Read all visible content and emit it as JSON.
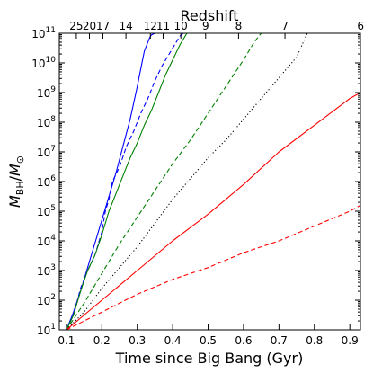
{
  "chart_data": {
    "type": "line",
    "title": "",
    "xlabel": "Time since Big Bang (Gyr)",
    "ylabel_main": "M",
    "ylabel_sub1": "BH",
    "ylabel_sep": "/",
    "ylabel_sub2": "⊙",
    "x2label": "Redshift",
    "xlim": [
      0.08,
      0.93
    ],
    "ylim": [
      1,
      11
    ],
    "yscale": "log",
    "x_ticks": [
      {
        "value": 0.1,
        "label": "0.1"
      },
      {
        "value": 0.2,
        "label": "0.2"
      },
      {
        "value": 0.3,
        "label": "0.3"
      },
      {
        "value": 0.4,
        "label": "0.4"
      },
      {
        "value": 0.5,
        "label": "0.5"
      },
      {
        "value": 0.6,
        "label": "0.6"
      },
      {
        "value": 0.7,
        "label": "0.7"
      },
      {
        "value": 0.8,
        "label": "0.8"
      },
      {
        "value": 0.9,
        "label": "0.9"
      }
    ],
    "y_ticks": [
      {
        "value": 1,
        "base": "10",
        "exp": "1"
      },
      {
        "value": 2,
        "base": "10",
        "exp": "2"
      },
      {
        "value": 3,
        "base": "10",
        "exp": "3"
      },
      {
        "value": 4,
        "base": "10",
        "exp": "4"
      },
      {
        "value": 5,
        "base": "10",
        "exp": "5"
      },
      {
        "value": 6,
        "base": "10",
        "exp": "6"
      },
      {
        "value": 7,
        "base": "10",
        "exp": "7"
      },
      {
        "value": 8,
        "base": "10",
        "exp": "8"
      },
      {
        "value": 9,
        "base": "10",
        "exp": "9"
      },
      {
        "value": 10,
        "base": "10",
        "exp": "10"
      },
      {
        "value": 11,
        "base": "10",
        "exp": "11"
      }
    ],
    "redshift_ticks": [
      {
        "z": 25,
        "x": 0.128
      },
      {
        "z": 20,
        "x": 0.165
      },
      {
        "z": 17,
        "x": 0.203
      },
      {
        "z": 14,
        "x": 0.268
      },
      {
        "z": 12,
        "x": 0.337
      },
      {
        "z": 11,
        "x": 0.373
      },
      {
        "z": 10,
        "x": 0.423
      },
      {
        "z": 9,
        "x": 0.493
      },
      {
        "z": 8,
        "x": 0.586
      },
      {
        "z": 7,
        "x": 0.717
      },
      {
        "z": 6,
        "x": 0.93
      }
    ],
    "series": [
      {
        "color": "#0000ff",
        "dash": "solid",
        "x": [
          0.1,
          0.12,
          0.14,
          0.16,
          0.18,
          0.2,
          0.22,
          0.24,
          0.26,
          0.28,
          0.3,
          0.31,
          0.32,
          0.33,
          0.335,
          0.34,
          0.35
        ],
        "y": [
          1.0,
          1.6,
          2.3,
          3.1,
          3.9,
          4.7,
          5.5,
          6.3,
          7.2,
          8.1,
          9.2,
          9.8,
          10.4,
          10.7,
          10.85,
          10.95,
          11.0
        ]
      },
      {
        "color": "#0000ff",
        "dash": "dashed",
        "x": [
          0.1,
          0.12,
          0.14,
          0.16,
          0.18,
          0.2,
          0.21,
          0.22,
          0.23,
          0.25,
          0.27,
          0.29,
          0.31,
          0.33,
          0.35,
          0.37,
          0.39,
          0.41,
          0.42,
          0.43
        ],
        "y": [
          1.0,
          1.5,
          2.4,
          3.0,
          3.5,
          4.3,
          5.0,
          5.4,
          6.0,
          6.5,
          7.2,
          7.7,
          8.3,
          8.8,
          9.4,
          9.9,
          10.3,
          10.7,
          10.9,
          11.0
        ]
      },
      {
        "color": "#008000",
        "dash": "solid",
        "x": [
          0.1,
          0.12,
          0.14,
          0.16,
          0.18,
          0.2,
          0.22,
          0.24,
          0.26,
          0.28,
          0.3,
          0.32,
          0.34,
          0.36,
          0.38,
          0.4,
          0.42,
          0.44
        ],
        "y": [
          1.0,
          1.5,
          2.3,
          3.0,
          3.5,
          4.2,
          5.0,
          5.6,
          6.2,
          6.8,
          7.3,
          7.9,
          8.4,
          9.0,
          9.6,
          10.1,
          10.6,
          11.0
        ]
      },
      {
        "color": "#008000",
        "dash": "dashed",
        "x": [
          0.1,
          0.15,
          0.2,
          0.25,
          0.3,
          0.35,
          0.4,
          0.45,
          0.5,
          0.55,
          0.6,
          0.63,
          0.65
        ],
        "y": [
          1.0,
          1.9,
          2.9,
          3.9,
          4.8,
          5.7,
          6.6,
          7.4,
          8.3,
          9.2,
          10.1,
          10.7,
          11.0
        ]
      },
      {
        "color": "#000000",
        "dash": "dotted",
        "x": [
          0.1,
          0.15,
          0.2,
          0.25,
          0.3,
          0.35,
          0.4,
          0.45,
          0.5,
          0.55,
          0.6,
          0.65,
          0.7,
          0.75,
          0.78
        ],
        "y": [
          1.0,
          1.6,
          2.4,
          3.1,
          3.8,
          4.6,
          5.4,
          6.1,
          6.8,
          7.4,
          8.1,
          8.8,
          9.5,
          10.2,
          11.0
        ]
      },
      {
        "color": "#ff0000",
        "dash": "solid",
        "x": [
          0.1,
          0.2,
          0.3,
          0.4,
          0.5,
          0.6,
          0.7,
          0.8,
          0.9,
          0.93
        ],
        "y": [
          1.0,
          2.0,
          3.0,
          4.0,
          4.9,
          5.9,
          7.0,
          7.9,
          8.8,
          9.0
        ]
      },
      {
        "color": "#ff0000",
        "dash": "dashed",
        "x": [
          0.1,
          0.2,
          0.3,
          0.4,
          0.5,
          0.6,
          0.7,
          0.8,
          0.9,
          0.93
        ],
        "y": [
          1.0,
          1.6,
          2.2,
          2.7,
          3.1,
          3.6,
          4.0,
          4.5,
          5.0,
          5.2
        ]
      }
    ]
  }
}
